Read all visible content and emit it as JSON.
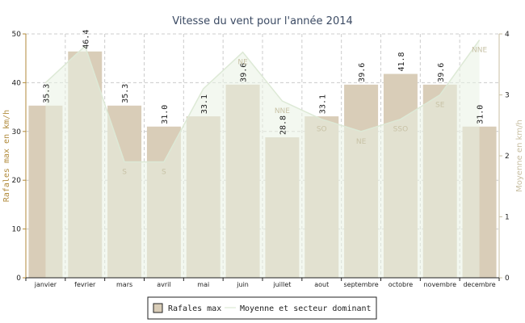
{
  "chart_data": {
    "type": "bar",
    "title": "Vitesse du vent pour l'année 2014",
    "categories": [
      "janvier",
      "fevrier",
      "mars",
      "avril",
      "mai",
      "juin",
      "juillet",
      "aout",
      "septembre",
      "octobre",
      "novembre",
      "decembre"
    ],
    "ylabel": "Rafales max en km/h",
    "y2label": "Moyenne en km/h",
    "ylim": [
      0,
      50
    ],
    "y2lim": [
      0,
      4
    ],
    "yticks": [
      "0",
      "10",
      "20",
      "30",
      "40",
      "50"
    ],
    "y2ticks": [
      "0",
      "1",
      "2",
      "3",
      "4"
    ],
    "grid": true,
    "legend_position": "bottom",
    "series": [
      {
        "name": "Rafales max",
        "type": "bar",
        "axis": "left",
        "color": "#d9cdb8",
        "values": [
          35.3,
          46.4,
          35.3,
          31.0,
          33.1,
          39.6,
          28.8,
          33.1,
          39.6,
          41.8,
          39.6,
          31.0
        ],
        "labels": [
          "35.3",
          "46.4",
          "35.3",
          "31.0",
          "33.1",
          "39.6",
          "28.8",
          "33.1",
          "39.6",
          "41.8",
          "39.6",
          "31.0"
        ]
      },
      {
        "name": "Moyenne et secteur dominant",
        "type": "area",
        "axis": "right",
        "color": "#e9f3e4",
        "values": [
          3.2,
          3.8,
          1.9,
          1.9,
          3.1,
          3.7,
          2.9,
          2.6,
          2.4,
          2.6,
          3.0,
          3.9
        ],
        "directions": [
          "",
          "",
          "S",
          "S",
          "",
          "NE",
          "NNE",
          "SO",
          "NE",
          "SSO",
          "SE",
          "NNE"
        ]
      }
    ]
  }
}
